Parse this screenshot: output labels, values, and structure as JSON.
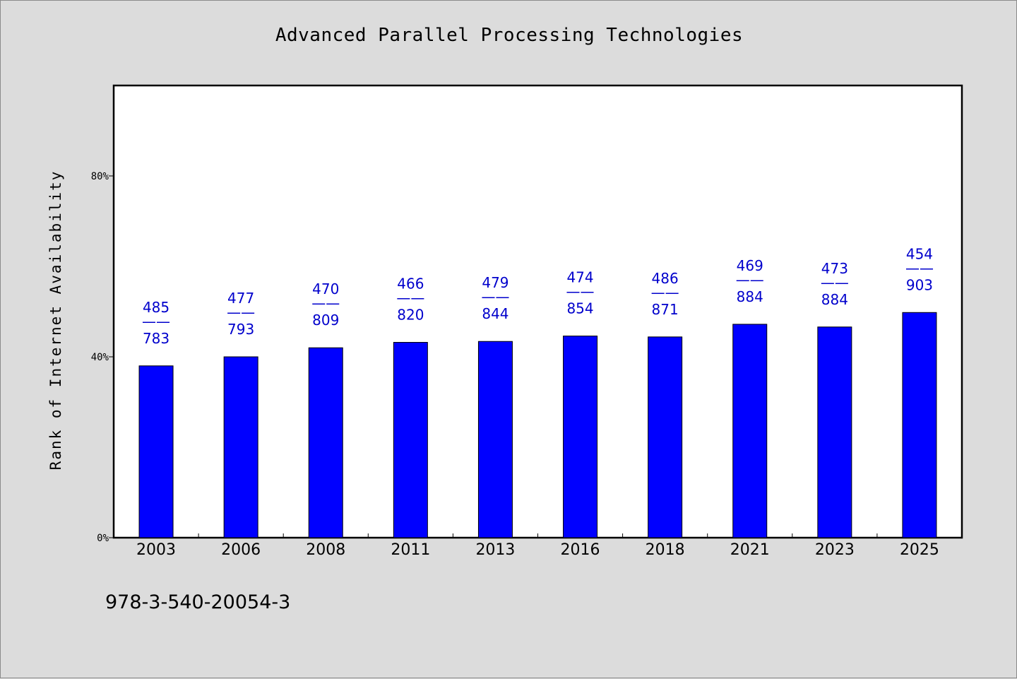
{
  "chart_data": {
    "type": "bar",
    "title": "Advanced Parallel Processing Technologies",
    "ylabel": "Rank of Internet Availability",
    "xlabel": "",
    "categories": [
      "2003",
      "2006",
      "2008",
      "2011",
      "2013",
      "2016",
      "2018",
      "2021",
      "2023",
      "2025"
    ],
    "values": [
      38,
      40,
      42,
      43.2,
      43.4,
      44.6,
      44.4,
      47.2,
      46.6,
      49.8
    ],
    "ylim": [
      0,
      100
    ],
    "yticks": [
      0,
      40,
      80
    ],
    "ytick_labels": [
      "0%",
      "40%",
      "80%"
    ],
    "data_labels": [
      {
        "top": "485",
        "sep": "——",
        "bottom": "783"
      },
      {
        "top": "477",
        "sep": "——",
        "bottom": "793"
      },
      {
        "top": "470",
        "sep": "——",
        "bottom": "809"
      },
      {
        "top": "466",
        "sep": "——",
        "bottom": "820"
      },
      {
        "top": "479",
        "sep": "——",
        "bottom": "844"
      },
      {
        "top": "474",
        "sep": "——",
        "bottom": "854"
      },
      {
        "top": "486",
        "sep": "——",
        "bottom": "871"
      },
      {
        "top": "469",
        "sep": "——",
        "bottom": "884"
      },
      {
        "top": "473",
        "sep": "——",
        "bottom": "884"
      },
      {
        "top": "454",
        "sep": "——",
        "bottom": "903"
      }
    ],
    "bar_color": "#0000ff",
    "label_color": "#0000cc",
    "grid": false,
    "legend": "none"
  },
  "footer": {
    "code": "978-3-540-20054-3"
  }
}
